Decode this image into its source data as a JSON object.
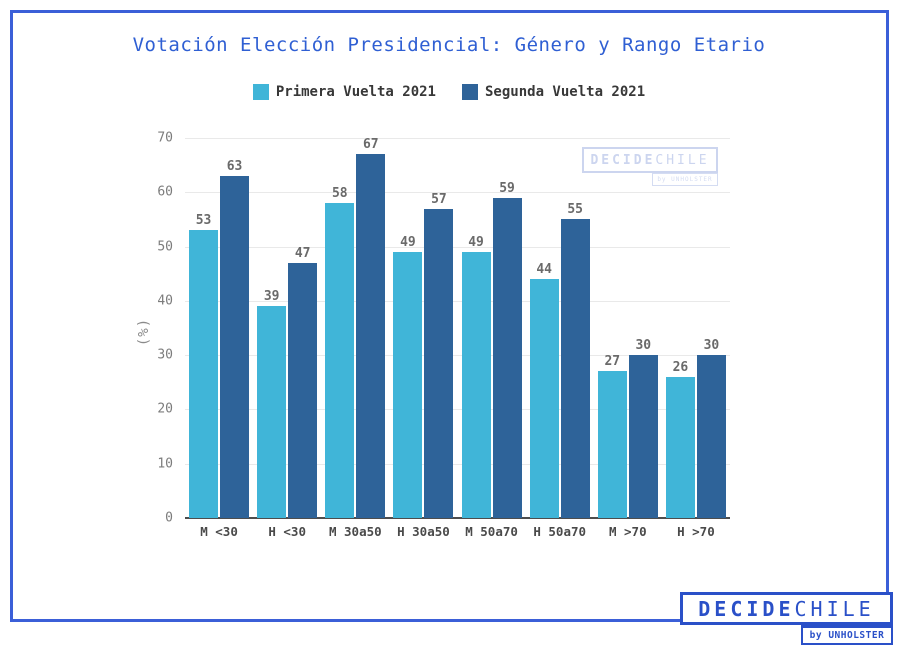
{
  "title": "Votación Elección Presidencial: Género y Rango Etario",
  "chart_data": {
    "type": "bar",
    "title": "Votación Elección Presidencial: Género y Rango Etario",
    "categories": [
      "M <30",
      "H <30",
      "M 30a50",
      "H 30a50",
      "M 50a70",
      "H 50a70",
      "M >70",
      "H >70"
    ],
    "series": [
      {
        "name": "Primera Vuelta 2021",
        "color": "#40B5D8",
        "values": [
          53,
          39,
          58,
          49,
          49,
          44,
          27,
          26
        ]
      },
      {
        "name": "Segunda Vuelta 2021",
        "color": "#2E6399",
        "values": [
          63,
          47,
          67,
          57,
          59,
          55,
          30,
          30
        ]
      }
    ],
    "xlabel": "",
    "ylabel": "(%)",
    "ylim": [
      0,
      70
    ],
    "yticks": [
      0,
      10,
      20,
      30,
      40,
      50,
      60,
      70
    ],
    "grid": true,
    "legend_position": "top",
    "value_labels": true
  },
  "watermark": {
    "brand_bold": "DECIDE",
    "brand_regular": "CHILE",
    "byline": "by UNHOLSTER"
  },
  "logo": {
    "brand_bold": "DECIDE",
    "brand_regular": "CHILE",
    "byline": "by UNHOLSTER",
    "color": "#2A50C8"
  },
  "colors": {
    "frame": "#3B5FD8",
    "title": "#2F5FD3",
    "primera": "#40B5D8",
    "segunda": "#2E6399"
  }
}
